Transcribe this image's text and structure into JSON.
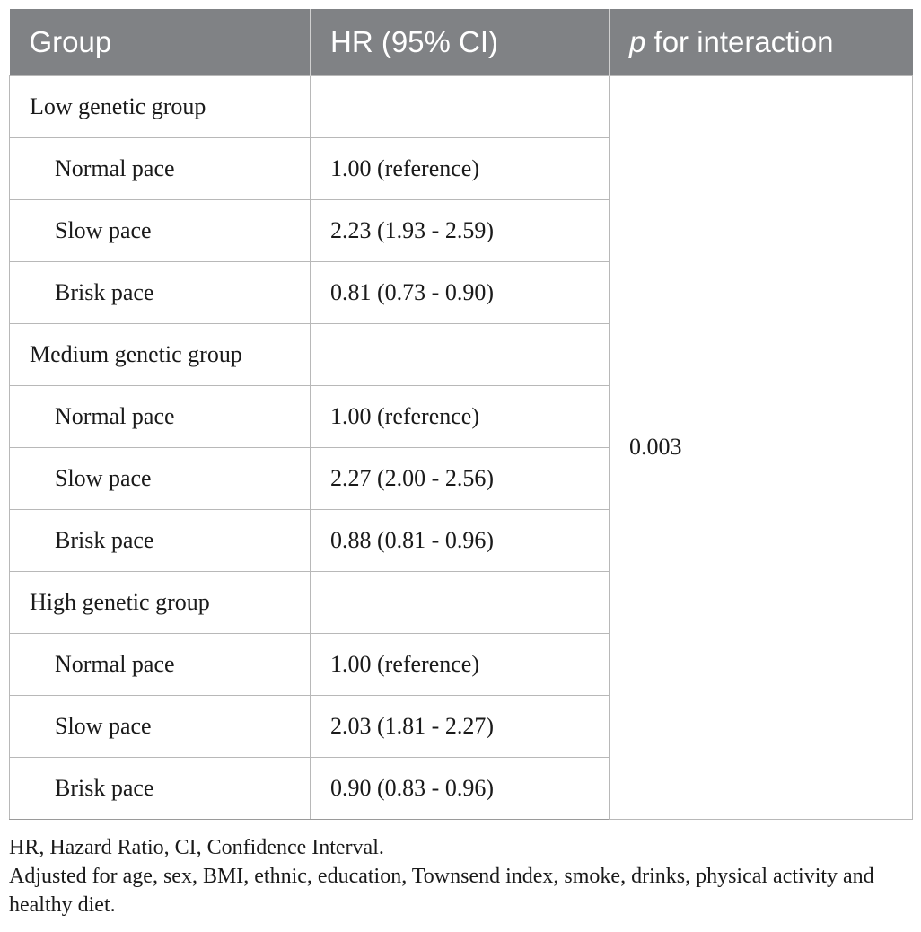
{
  "table": {
    "headers": {
      "group": "Group",
      "hr": "HR (95% CI)",
      "p_italic": "p",
      "p_rest": " for interaction"
    },
    "rows": [
      {
        "group": "Low genetic group",
        "hr": "",
        "indent": false
      },
      {
        "group": "Normal pace",
        "hr": "1.00 (reference)",
        "indent": true
      },
      {
        "group": "Slow pace",
        "hr": "2.23 (1.93 - 2.59)",
        "indent": true
      },
      {
        "group": "Brisk pace",
        "hr": "0.81 (0.73 - 0.90)",
        "indent": true
      },
      {
        "group": "Medium genetic group",
        "hr": "",
        "indent": false
      },
      {
        "group": "Normal pace",
        "hr": "1.00 (reference)",
        "indent": true
      },
      {
        "group": "Slow pace",
        "hr": "2.27 (2.00 - 2.56)",
        "indent": true
      },
      {
        "group": "Brisk pace",
        "hr": "0.88 (0.81 - 0.96)",
        "indent": true
      },
      {
        "group": "High genetic group",
        "hr": "",
        "indent": false
      },
      {
        "group": "Normal pace",
        "hr": "1.00 (reference)",
        "indent": true
      },
      {
        "group": "Slow pace",
        "hr": "2.03 (1.81 - 2.27)",
        "indent": true
      },
      {
        "group": "Brisk pace",
        "hr": "0.90 (0.83 - 0.96)",
        "indent": true
      }
    ],
    "p_value": "0.003"
  },
  "notes": {
    "abbreviations": "HR, Hazard Ratio, CI, Confidence Interval.",
    "adjustment": "Adjusted for age, sex, BMI, ethnic, education, Townsend index, smoke, drinks, physical activity and healthy diet."
  }
}
